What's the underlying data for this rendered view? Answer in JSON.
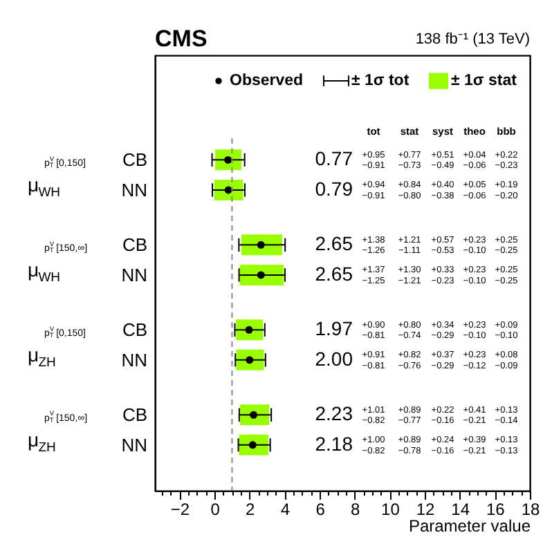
{
  "chart_data": {
    "type": "scatter",
    "orientation": "horizontal",
    "title": "CMS",
    "xlabel": "Parameter value",
    "categories": [
      "CB",
      "NN",
      "CB",
      "NN",
      "CB",
      "NN",
      "CB",
      "NN"
    ],
    "series": [
      {
        "name": "Observed",
        "color": "#000000",
        "values": [
          0.77,
          0.79,
          2.65,
          2.65,
          1.97,
          2.0,
          2.23,
          2.18
        ],
        "errors": [
          [
            -0.14,
            1.72
          ],
          [
            -0.12,
            1.73
          ],
          [
            1.39,
            4.03
          ],
          [
            1.4,
            4.02
          ],
          [
            1.16,
            2.87
          ],
          [
            1.19,
            2.91
          ],
          [
            1.41,
            3.24
          ],
          [
            1.36,
            3.18
          ]
        ]
      },
      {
        "name": "± 1σ stat",
        "type": "bar",
        "color": "#99ff00",
        "values": [
          1.5,
          1.64,
          2.32,
          2.51,
          1.54,
          1.58,
          1.66,
          1.67
        ],
        "base": [
          0.04,
          -0.01,
          1.54,
          1.44,
          1.23,
          1.24,
          1.46,
          1.4
        ]
      }
    ],
    "xlim": [
      -3.4,
      18
    ],
    "xticks": [
      {
        "value": -3,
        "label": null
      },
      {
        "value": -2.5,
        "label": null
      },
      {
        "value": -2,
        "label": "−2"
      },
      {
        "value": -1.5,
        "label": null
      },
      {
        "value": -1,
        "label": null
      },
      {
        "value": -0.5,
        "label": null
      },
      0,
      {
        "value": 0.5,
        "label": null
      },
      {
        "value": 1,
        "label": null
      },
      {
        "value": 1.5,
        "label": null
      },
      2,
      {
        "value": 2.5,
        "label": null
      },
      {
        "value": 3,
        "label": null
      },
      {
        "value": 3.5,
        "label": null
      },
      4,
      {
        "value": 4.5,
        "label": null
      },
      {
        "value": 5,
        "label": null
      },
      {
        "value": 5.5,
        "label": null
      },
      6,
      {
        "value": 6.5,
        "label": null
      },
      {
        "value": 7,
        "label": null
      },
      {
        "value": 7.5,
        "label": null
      },
      8,
      {
        "value": 8.5,
        "label": null
      },
      {
        "value": 9,
        "label": null
      },
      {
        "value": 9.5,
        "label": null
      },
      10,
      {
        "value": 10.5,
        "label": null
      },
      {
        "value": 11,
        "label": null
      },
      {
        "value": 11.5,
        "label": null
      },
      12,
      {
        "value": 12.5,
        "label": null
      },
      {
        "value": 13,
        "label": null
      },
      {
        "value": 13.5,
        "label": null
      },
      14,
      {
        "value": 14.5,
        "label": null
      },
      {
        "value": 15,
        "label": null
      },
      {
        "value": 15.5,
        "label": null
      },
      16,
      {
        "value": 16.5,
        "label": null
      },
      {
        "value": 17,
        "label": null
      },
      {
        "value": 17.5,
        "label": null
      },
      18
    ],
    "ref_lines": [
      {
        "axis": "x",
        "value": 1,
        "color": "#888888",
        "line_style": "dashed"
      }
    ],
    "legend": "top",
    "marker": "circle",
    "annotations": [
      "138 fb⁻¹ (13 TeV)",
      "± 1σ tot",
      "tot",
      "stat",
      "syst",
      "theo",
      "bbb",
      "μ$_{WH}$",
      "p$^{V}$$_{T}$ [0,150]",
      "μ$_{WH}$",
      "p$^{V}$$_{T}$ [150,∞]",
      "μ$_{ZH}$",
      "p$^{V}$$_{T}$ [0,150]",
      "μ$_{ZH}$",
      "p$^{V}$$_{T}$ [150,∞]",
      "0.77",
      "0.79",
      "2.65",
      "2.65",
      "1.97",
      "2.00",
      "2.23",
      "2.18",
      "+0.95",
      "+0.77",
      "+0.51",
      "+0.04",
      "+0.22",
      "−0.91",
      "−0.73",
      "−0.49",
      "−0.06",
      "−0.23",
      "+0.94",
      "+0.84",
      "+0.40",
      "+0.05",
      "+0.19",
      "−0.91",
      "−0.80",
      "−0.38",
      "−0.06",
      "−0.20",
      "+1.38",
      "+1.21",
      "+0.57",
      "+0.23",
      "+0.25",
      "−1.26",
      "−1.11",
      "−0.53",
      "−0.10",
      "−0.25",
      "+1.37",
      "+1.30",
      "+0.33",
      "+0.23",
      "+0.25",
      "−1.25",
      "−1.21",
      "−0.23",
      "−0.10",
      "−0.25",
      "+0.90",
      "+0.80",
      "+0.34",
      "+0.23",
      "+0.09",
      "−0.81",
      "−0.74",
      "−0.29",
      "−0.10",
      "−0.10",
      "+0.91",
      "+0.82",
      "+0.37",
      "+0.23",
      "+0.08",
      "−0.81",
      "−0.76",
      "−0.29",
      "−0.12",
      "−0.09",
      "+1.01",
      "+0.89",
      "+0.22",
      "+0.41",
      "+0.13",
      "−0.82",
      "−0.77",
      "−0.16",
      "−0.21",
      "−0.14",
      "+1.00",
      "+0.89",
      "+0.24",
      "+0.39",
      "+0.13",
      "−0.82",
      "−0.78",
      "−0.16",
      "−0.21",
      "−0.13"
    ]
  }
}
